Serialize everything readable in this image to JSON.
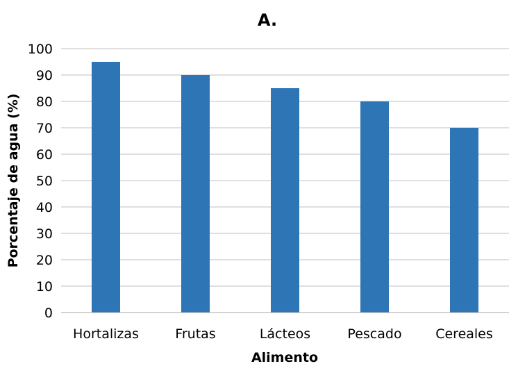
{
  "chart_data": {
    "type": "bar",
    "title": "A.",
    "xlabel": "Alimento",
    "ylabel": "Porcentaje de agua (%)",
    "categories": [
      "Hortalizas",
      "Frutas",
      "Lácteos",
      "Pescado",
      "Cereales"
    ],
    "values": [
      95,
      90,
      85,
      80,
      70
    ],
    "ylim": [
      0,
      100
    ],
    "yticks": [
      0,
      10,
      20,
      30,
      40,
      50,
      60,
      70,
      80,
      90,
      100
    ],
    "grid": true,
    "legend": "none",
    "bar_color": "#2e75b6"
  }
}
